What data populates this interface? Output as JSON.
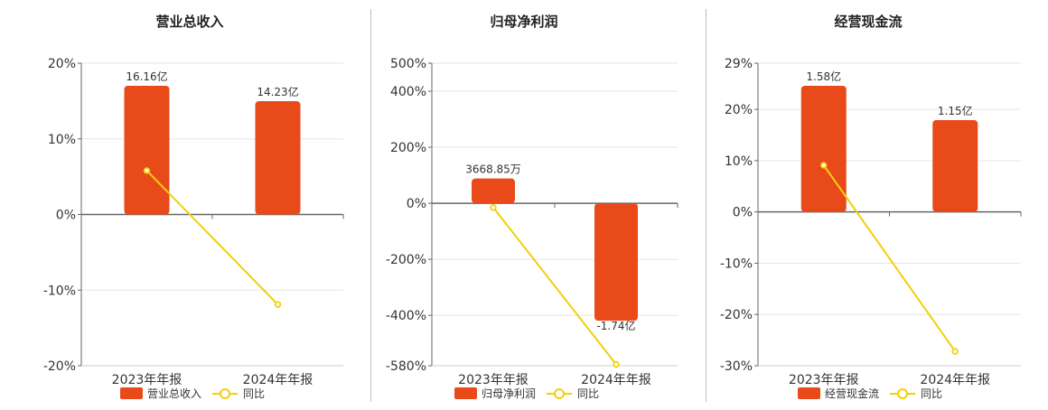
{
  "colors": {
    "bar": "#e84a1a",
    "line": "#f2cf0a",
    "axis": "#666666",
    "grid": "#e6e6e6",
    "text": "#333333"
  },
  "legend_line_name": "同比",
  "chart_data": [
    {
      "type": "bar",
      "title": "营业总收入",
      "categories": [
        "2023年年报",
        "2024年年报"
      ],
      "series": [
        {
          "name": "营业总收入",
          "type": "bar",
          "values": [
            16.16,
            14.23
          ],
          "labels": [
            "16.16亿",
            "14.23亿"
          ]
        },
        {
          "name": "同比",
          "type": "line",
          "values": [
            5.8,
            -11.9
          ]
        }
      ],
      "yticks": [
        "20%",
        "10%",
        "0%",
        "-10%",
        "-20%"
      ],
      "ylim": [
        -20,
        20
      ],
      "xlabel": "",
      "ylabel": "",
      "grid": true,
      "legend": "bottom"
    },
    {
      "type": "bar",
      "title": "归母净利润",
      "categories": [
        "2023年年报",
        "2024年年报"
      ],
      "series": [
        {
          "name": "归母净利润",
          "type": "bar",
          "values": [
            0.366885,
            -1.74
          ],
          "labels": [
            "3668.85万",
            "-1.74亿"
          ]
        },
        {
          "name": "同比",
          "type": "line",
          "values": [
            -15,
            -575
          ]
        }
      ],
      "yticks": [
        "500%",
        "400%",
        "200%",
        "0%",
        "-200%",
        "-400%",
        "-580%"
      ],
      "ylim": [
        -580,
        500
      ],
      "xlabel": "",
      "ylabel": "",
      "grid": true,
      "legend": "bottom"
    },
    {
      "type": "bar",
      "title": "经营现金流",
      "categories": [
        "2023年年报",
        "2024年年报"
      ],
      "series": [
        {
          "name": "经营现金流",
          "type": "bar",
          "values": [
            1.58,
            1.15
          ],
          "labels": [
            "1.58亿",
            "1.15亿"
          ]
        },
        {
          "name": "同比",
          "type": "line",
          "values": [
            9.1,
            -27.2
          ]
        }
      ],
      "yticks": [
        "29%",
        "20%",
        "10%",
        "0%",
        "-10%",
        "-20%",
        "-30%"
      ],
      "ylim": [
        -30,
        29
      ],
      "xlabel": "",
      "ylabel": "",
      "grid": true,
      "legend": "bottom"
    }
  ]
}
